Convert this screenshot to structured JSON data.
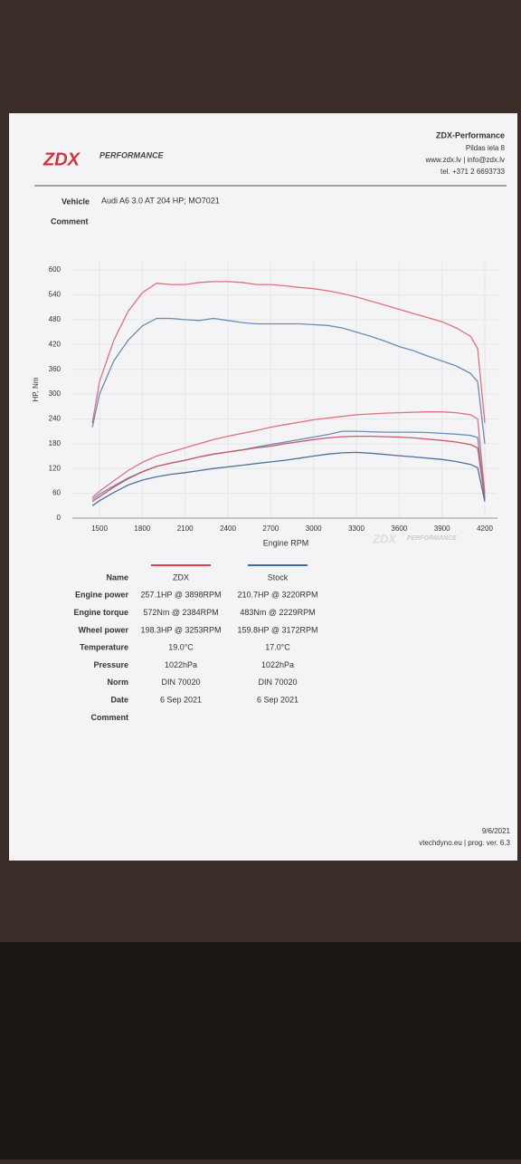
{
  "header": {
    "logo": "ZDX",
    "logo_sub": "PERFORMANCE",
    "company": "ZDX-Performance",
    "address": "Pildas iela 8",
    "web": "www.zdx.lv | info@zdx.lv",
    "phone": "tel. +371 2 6693733"
  },
  "vehicle": {
    "label": "Vehicle",
    "value": "Audi A6 3.0 AT 204 HP; MO7021",
    "comment": "Comment"
  },
  "chart_data": {
    "type": "line",
    "xlabel": "Engine RPM",
    "ylabel": "HP, Nm",
    "xlim": [
      1380,
      4250
    ],
    "ylim": [
      0,
      620
    ],
    "xticks": [
      1500,
      1800,
      2100,
      2400,
      2700,
      3000,
      3300,
      3600,
      3900,
      4200
    ],
    "yticks": [
      0,
      60,
      120,
      180,
      240,
      300,
      360,
      420,
      480,
      540,
      600
    ],
    "grid": true,
    "x": [
      1450,
      1500,
      1600,
      1700,
      1800,
      1900,
      2000,
      2100,
      2200,
      2300,
      2400,
      2500,
      2600,
      2700,
      2800,
      2900,
      3000,
      3100,
      3200,
      3300,
      3400,
      3500,
      3600,
      3700,
      3800,
      3900,
      4000,
      4100,
      4150,
      4200
    ],
    "series": [
      {
        "color": "#e0707a",
        "values": [
          230,
          330,
          430,
          500,
          545,
          568,
          565,
          565,
          570,
          572,
          572,
          570,
          565,
          565,
          562,
          558,
          555,
          550,
          543,
          535,
          525,
          515,
          505,
          495,
          485,
          475,
          460,
          440,
          410,
          230
        ]
      },
      {
        "color": "#6a8cb8",
        "values": [
          220,
          300,
          380,
          430,
          465,
          483,
          483,
          480,
          478,
          483,
          478,
          473,
          470,
          470,
          470,
          470,
          468,
          466,
          460,
          450,
          440,
          428,
          415,
          405,
          392,
          380,
          368,
          350,
          330,
          180
        ]
      },
      {
        "color": "#e0707a",
        "values": [
          50,
          65,
          90,
          115,
          135,
          150,
          160,
          170,
          180,
          190,
          198,
          205,
          212,
          220,
          226,
          232,
          238,
          242,
          246,
          250,
          252,
          254,
          255,
          256,
          257,
          257,
          255,
          250,
          240,
          60
        ]
      },
      {
        "color": "#6a8cb8",
        "values": [
          45,
          58,
          78,
          97,
          112,
          125,
          133,
          140,
          148,
          155,
          160,
          165,
          172,
          178,
          184,
          190,
          196,
          202,
          210,
          210,
          209,
          208,
          208,
          208,
          207,
          205,
          203,
          200,
          195,
          50
        ]
      },
      {
        "color": "#c85a66",
        "values": [
          40,
          52,
          75,
          95,
          112,
          125,
          133,
          140,
          148,
          155,
          160,
          165,
          170,
          174,
          180,
          185,
          190,
          194,
          197,
          198,
          198,
          197,
          196,
          194,
          191,
          188,
          184,
          178,
          170,
          45
        ]
      },
      {
        "color": "#4f6f9e",
        "values": [
          30,
          42,
          62,
          80,
          92,
          100,
          106,
          110,
          115,
          120,
          124,
          128,
          132,
          136,
          140,
          145,
          150,
          155,
          158,
          159,
          157,
          154,
          151,
          148,
          145,
          142,
          137,
          130,
          122,
          40
        ]
      }
    ]
  },
  "table": {
    "header": [
      "Name",
      "ZDX",
      "Stock"
    ],
    "colors": [
      "#d9404a",
      "#3a6bb0"
    ],
    "rows": [
      [
        "Engine power",
        "257.1HP @  3898RPM",
        "210.7HP @  3220RPM"
      ],
      [
        "Engine torque",
        "572Nm @ 2384RPM",
        "483Nm @ 2229RPM"
      ],
      [
        "Wheel power",
        "198.3HP @  3253RPM",
        "159.8HP @  3172RPM"
      ],
      [
        "Temperature",
        "19.0°C",
        "17.0°C"
      ],
      [
        "Pressure",
        "1022hPa",
        "1022hPa"
      ],
      [
        "Norm",
        "DIN 70020",
        "DIN 70020"
      ],
      [
        "Date",
        "6 Sep 2021",
        "6 Sep 2021"
      ],
      [
        "Comment"
      ]
    ]
  },
  "footer": {
    "date": "9/6/2021",
    "software": "vtechdyno.eu | prog. ver. 6.3"
  }
}
